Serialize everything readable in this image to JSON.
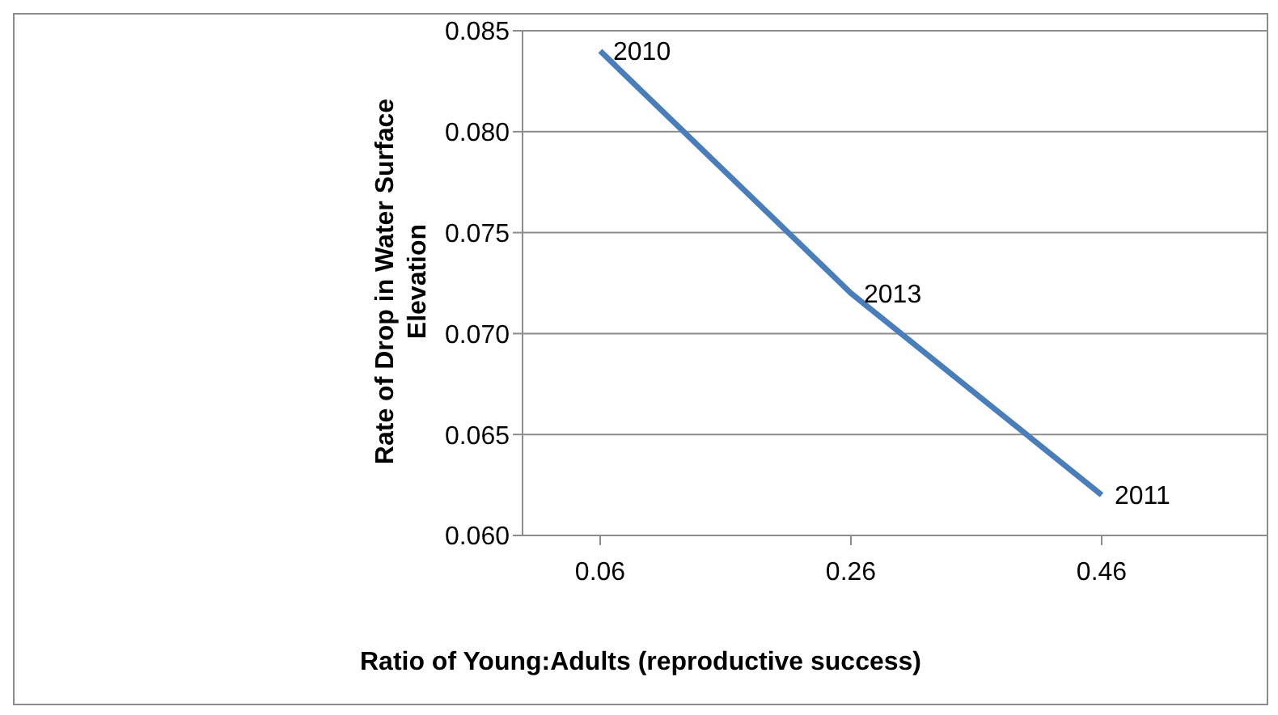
{
  "chart_data": {
    "type": "line",
    "xlabel": "Ratio of Young:Adults (reproductive success)",
    "ylabel": "Rate of Drop in Water Surface Elevation",
    "categories": [
      "0.06",
      "0.26",
      "0.46"
    ],
    "series": [
      {
        "color": "#4a7ebb",
        "values": [
          0.084,
          0.072,
          0.062
        ]
      }
    ],
    "ylim": [
      0.06,
      0.085
    ],
    "yticks": [
      {
        "value": 0.06,
        "label": "0.060"
      },
      {
        "value": 0.065,
        "label": "0.065"
      },
      {
        "value": 0.07,
        "label": "0.070"
      },
      {
        "value": 0.075,
        "label": "0.075"
      },
      {
        "value": 0.08,
        "label": "0.080"
      },
      {
        "value": 0.085,
        "label": "0.085"
      }
    ],
    "grid": "y",
    "legend": false,
    "marker": "none",
    "line_style": "solid",
    "annotations": [
      {
        "text": "2010",
        "x": "0.06",
        "y": 0.084
      },
      {
        "text": "2013",
        "x": "0.26",
        "y": 0.072
      },
      {
        "text": "2011",
        "x": "0.46",
        "y": 0.062
      }
    ]
  }
}
